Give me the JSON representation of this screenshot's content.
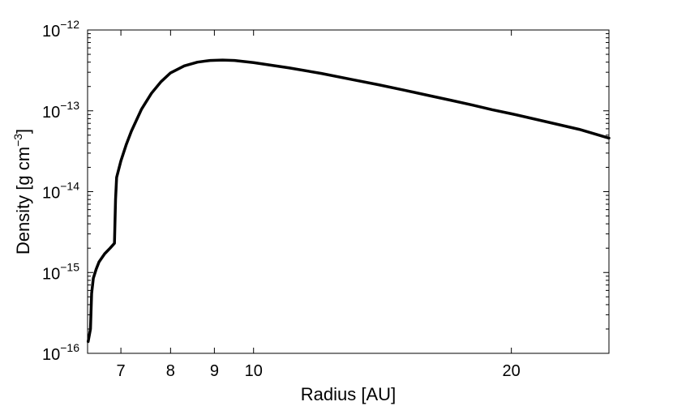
{
  "chart_data": {
    "type": "line",
    "xlabel": "Radius [AU]",
    "ylabel": {
      "main": "Density [g cm",
      "exp": "−3",
      "close": "]"
    },
    "x_scale": "log",
    "y_scale": "log",
    "xlim": [
      6.4,
      26
    ],
    "ylim": [
      1e-16,
      1e-12
    ],
    "grid": false,
    "x_ticks": [
      {
        "value": 7,
        "label": "7"
      },
      {
        "value": 8,
        "label": "8"
      },
      {
        "value": 9,
        "label": "9"
      },
      {
        "value": 10,
        "label": "10"
      },
      {
        "value": 20,
        "label": "20"
      }
    ],
    "y_ticks": [
      {
        "value": 1e-16,
        "base": "10",
        "exp": "−16"
      },
      {
        "value": 1e-15,
        "base": "10",
        "exp": "−15"
      },
      {
        "value": 1e-14,
        "base": "10",
        "exp": "−14"
      },
      {
        "value": 1e-13,
        "base": "10",
        "exp": "−13"
      },
      {
        "value": 1e-12,
        "base": "10",
        "exp": "−12"
      }
    ],
    "series": [
      {
        "color": "#000000",
        "x": [
          6.41,
          6.45,
          6.47,
          6.5,
          6.55,
          6.6,
          6.7,
          6.8,
          6.88,
          6.9,
          6.92,
          7.0,
          7.1,
          7.2,
          7.4,
          7.6,
          7.8,
          8.0,
          8.3,
          8.6,
          8.9,
          9.2,
          9.5,
          10.0,
          11.0,
          12.0,
          13.0,
          14.0,
          15.0,
          16.0,
          17.0,
          18.0,
          19.0,
          20.0,
          22.0,
          24.0,
          26.0
        ],
        "y": [
          1.4e-16,
          2e-16,
          5.5e-16,
          8.5e-16,
          1.1e-15,
          1.35e-15,
          1.7e-15,
          2e-15,
          2.3e-15,
          8e-15,
          1.5e-14,
          2.4e-14,
          3.8e-14,
          5.6e-14,
          1.05e-13,
          1.65e-13,
          2.3e-13,
          2.95e-13,
          3.6e-13,
          4e-13,
          4.2e-13,
          4.25e-13,
          4.2e-13,
          3.95e-13,
          3.4e-13,
          2.9e-13,
          2.45e-13,
          2.1e-13,
          1.8e-13,
          1.55e-13,
          1.35e-13,
          1.18e-13,
          1.03e-13,
          9.2e-14,
          7.3e-14,
          5.9e-14,
          4.6e-14
        ]
      }
    ]
  }
}
